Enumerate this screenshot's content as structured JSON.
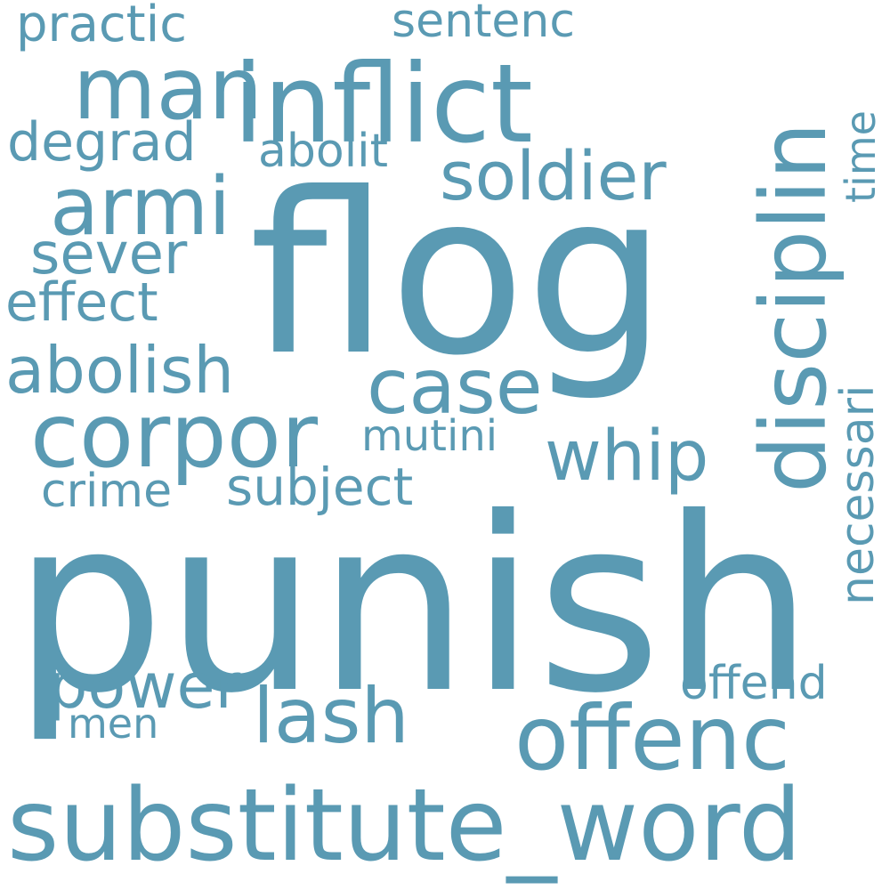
{
  "color": "#5a9ab3",
  "words": {
    "punish": "punish",
    "flog": "flog",
    "substitute_word": "substitute_word",
    "inflict": "inflict",
    "offenc": "offenc",
    "corpor": "corpor",
    "disciplin": "disciplin",
    "man": "man",
    "armi": "armi",
    "soldier": "soldier",
    "case": "case",
    "lash": "lash",
    "whip": "whip",
    "abolish": "abolish",
    "power": "power",
    "sever": "sever",
    "degrad": "degrad",
    "effect": "effect",
    "subject": "subject",
    "practic": "practic",
    "sentenc": "sentenc",
    "abolit": "abolit",
    "mutini": "mutini",
    "crime": "crime",
    "necessari": "necessari",
    "offend": "offend",
    "time": "time",
    "men": "men"
  }
}
